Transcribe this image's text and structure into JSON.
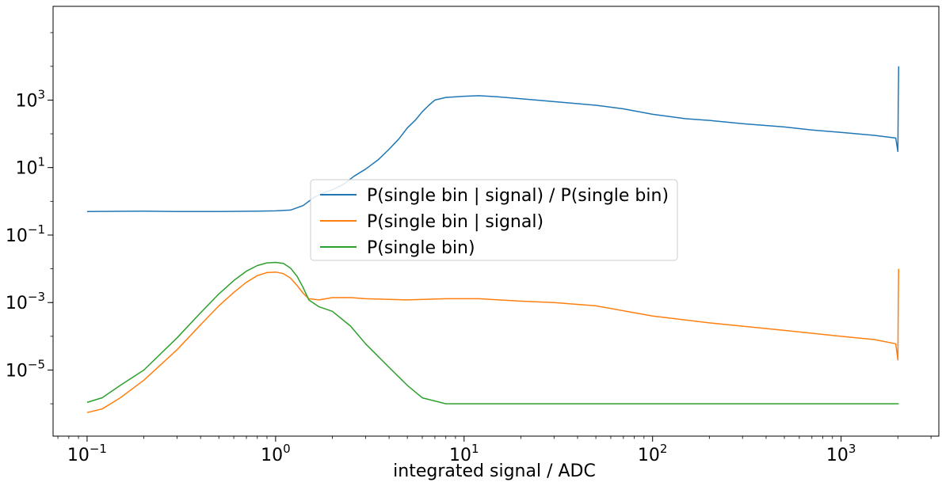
{
  "chart_data": {
    "type": "line",
    "title": "",
    "xlabel": "integrated signal / ADC",
    "ylabel": "",
    "xscale": "log",
    "yscale": "log",
    "xlim": [
      0.066,
      3300
    ],
    "ylim": [
      1.1e-07,
      600000
    ],
    "grid": false,
    "legend_position": "center",
    "x_ticks": [
      {
        "base": "10",
        "exp": "−1",
        "value": 0.1
      },
      {
        "base": "10",
        "exp": "0",
        "value": 1
      },
      {
        "base": "10",
        "exp": "1",
        "value": 10
      },
      {
        "base": "10",
        "exp": "2",
        "value": 100
      },
      {
        "base": "10",
        "exp": "3",
        "value": 1000
      }
    ],
    "y_ticks": [
      {
        "base": "10",
        "exp": "−5",
        "value": 1e-05
      },
      {
        "base": "10",
        "exp": "−3",
        "value": 0.001
      },
      {
        "base": "10",
        "exp": "−1",
        "value": 0.1
      },
      {
        "base": "10",
        "exp": "1",
        "value": 10
      },
      {
        "base": "10",
        "exp": "3",
        "value": 1000
      }
    ],
    "series": [
      {
        "name": "P(single bin | signal) / P(single bin)",
        "color": "#1f77b4",
        "points": [
          [
            0.1,
            0.5
          ],
          [
            0.2,
            0.51
          ],
          [
            0.3,
            0.5
          ],
          [
            0.5,
            0.5
          ],
          [
            0.8,
            0.51
          ],
          [
            1.0,
            0.52
          ],
          [
            1.2,
            0.55
          ],
          [
            1.4,
            0.75
          ],
          [
            1.6,
            1.3
          ],
          [
            1.8,
            1.8
          ],
          [
            2.0,
            2.2
          ],
          [
            2.3,
            3.2
          ],
          [
            2.6,
            5.5
          ],
          [
            3.0,
            9
          ],
          [
            3.5,
            17
          ],
          [
            4.0,
            35
          ],
          [
            4.5,
            70
          ],
          [
            5.0,
            150
          ],
          [
            5.5,
            250
          ],
          [
            6.0,
            450
          ],
          [
            6.5,
            700
          ],
          [
            7.0,
            1000
          ],
          [
            8.0,
            1200
          ],
          [
            10,
            1300
          ],
          [
            12,
            1350
          ],
          [
            15,
            1250
          ],
          [
            20,
            1100
          ],
          [
            30,
            900
          ],
          [
            50,
            700
          ],
          [
            70,
            550
          ],
          [
            100,
            380
          ],
          [
            150,
            280
          ],
          [
            200,
            250
          ],
          [
            300,
            200
          ],
          [
            500,
            160
          ],
          [
            700,
            130
          ],
          [
            1000,
            110
          ],
          [
            1500,
            90
          ],
          [
            1950,
            75
          ],
          [
            2000,
            30
          ],
          [
            2010,
            1000
          ],
          [
            2020,
            10000
          ]
        ]
      },
      {
        "name": "P(single bin | signal)",
        "color": "#ff7f0e",
        "points": [
          [
            0.1,
            5.5e-07
          ],
          [
            0.12,
            7e-07
          ],
          [
            0.15,
            1.5e-06
          ],
          [
            0.2,
            5e-06
          ],
          [
            0.3,
            4e-05
          ],
          [
            0.4,
            0.00022
          ],
          [
            0.5,
            0.0008
          ],
          [
            0.6,
            0.002
          ],
          [
            0.7,
            0.004
          ],
          [
            0.8,
            0.0063
          ],
          [
            0.9,
            0.0077
          ],
          [
            1.0,
            0.008
          ],
          [
            1.1,
            0.0072
          ],
          [
            1.2,
            0.0053
          ],
          [
            1.3,
            0.0032
          ],
          [
            1.4,
            0.0019
          ],
          [
            1.5,
            0.0013
          ],
          [
            1.7,
            0.0012
          ],
          [
            2.0,
            0.0014
          ],
          [
            2.5,
            0.0014
          ],
          [
            3,
            0.0013
          ],
          [
            5,
            0.0012
          ],
          [
            8,
            0.0013
          ],
          [
            12,
            0.0013
          ],
          [
            20,
            0.0011
          ],
          [
            30,
            0.001
          ],
          [
            50,
            0.0008
          ],
          [
            100,
            0.0004
          ],
          [
            200,
            0.00025
          ],
          [
            500,
            0.00015
          ],
          [
            1000,
            0.0001
          ],
          [
            1500,
            8e-05
          ],
          [
            1950,
            6e-05
          ],
          [
            2000,
            2e-05
          ],
          [
            2010,
            0.001
          ],
          [
            2020,
            0.01
          ]
        ]
      },
      {
        "name": "P(single bin)",
        "color": "#2ca02c",
        "points": [
          [
            0.1,
            1.1e-06
          ],
          [
            0.12,
            1.5e-06
          ],
          [
            0.15,
            3.5e-06
          ],
          [
            0.2,
            1e-05
          ],
          [
            0.3,
            9e-05
          ],
          [
            0.4,
            0.0005
          ],
          [
            0.5,
            0.0018
          ],
          [
            0.6,
            0.0045
          ],
          [
            0.7,
            0.0085
          ],
          [
            0.8,
            0.0125
          ],
          [
            0.9,
            0.015
          ],
          [
            1.0,
            0.0155
          ],
          [
            1.1,
            0.0145
          ],
          [
            1.2,
            0.0105
          ],
          [
            1.3,
            0.006
          ],
          [
            1.4,
            0.0028
          ],
          [
            1.5,
            0.0012
          ],
          [
            1.7,
            0.00075
          ],
          [
            2.0,
            0.00055
          ],
          [
            2.5,
            0.0002
          ],
          [
            3,
            6e-05
          ],
          [
            4,
            1.2e-05
          ],
          [
            5,
            3.5e-06
          ],
          [
            6,
            1.5e-06
          ],
          [
            8,
            1e-06
          ],
          [
            10,
            1e-06
          ],
          [
            50,
            1e-06
          ],
          [
            500,
            1e-06
          ],
          [
            2020,
            1e-06
          ]
        ]
      }
    ]
  }
}
